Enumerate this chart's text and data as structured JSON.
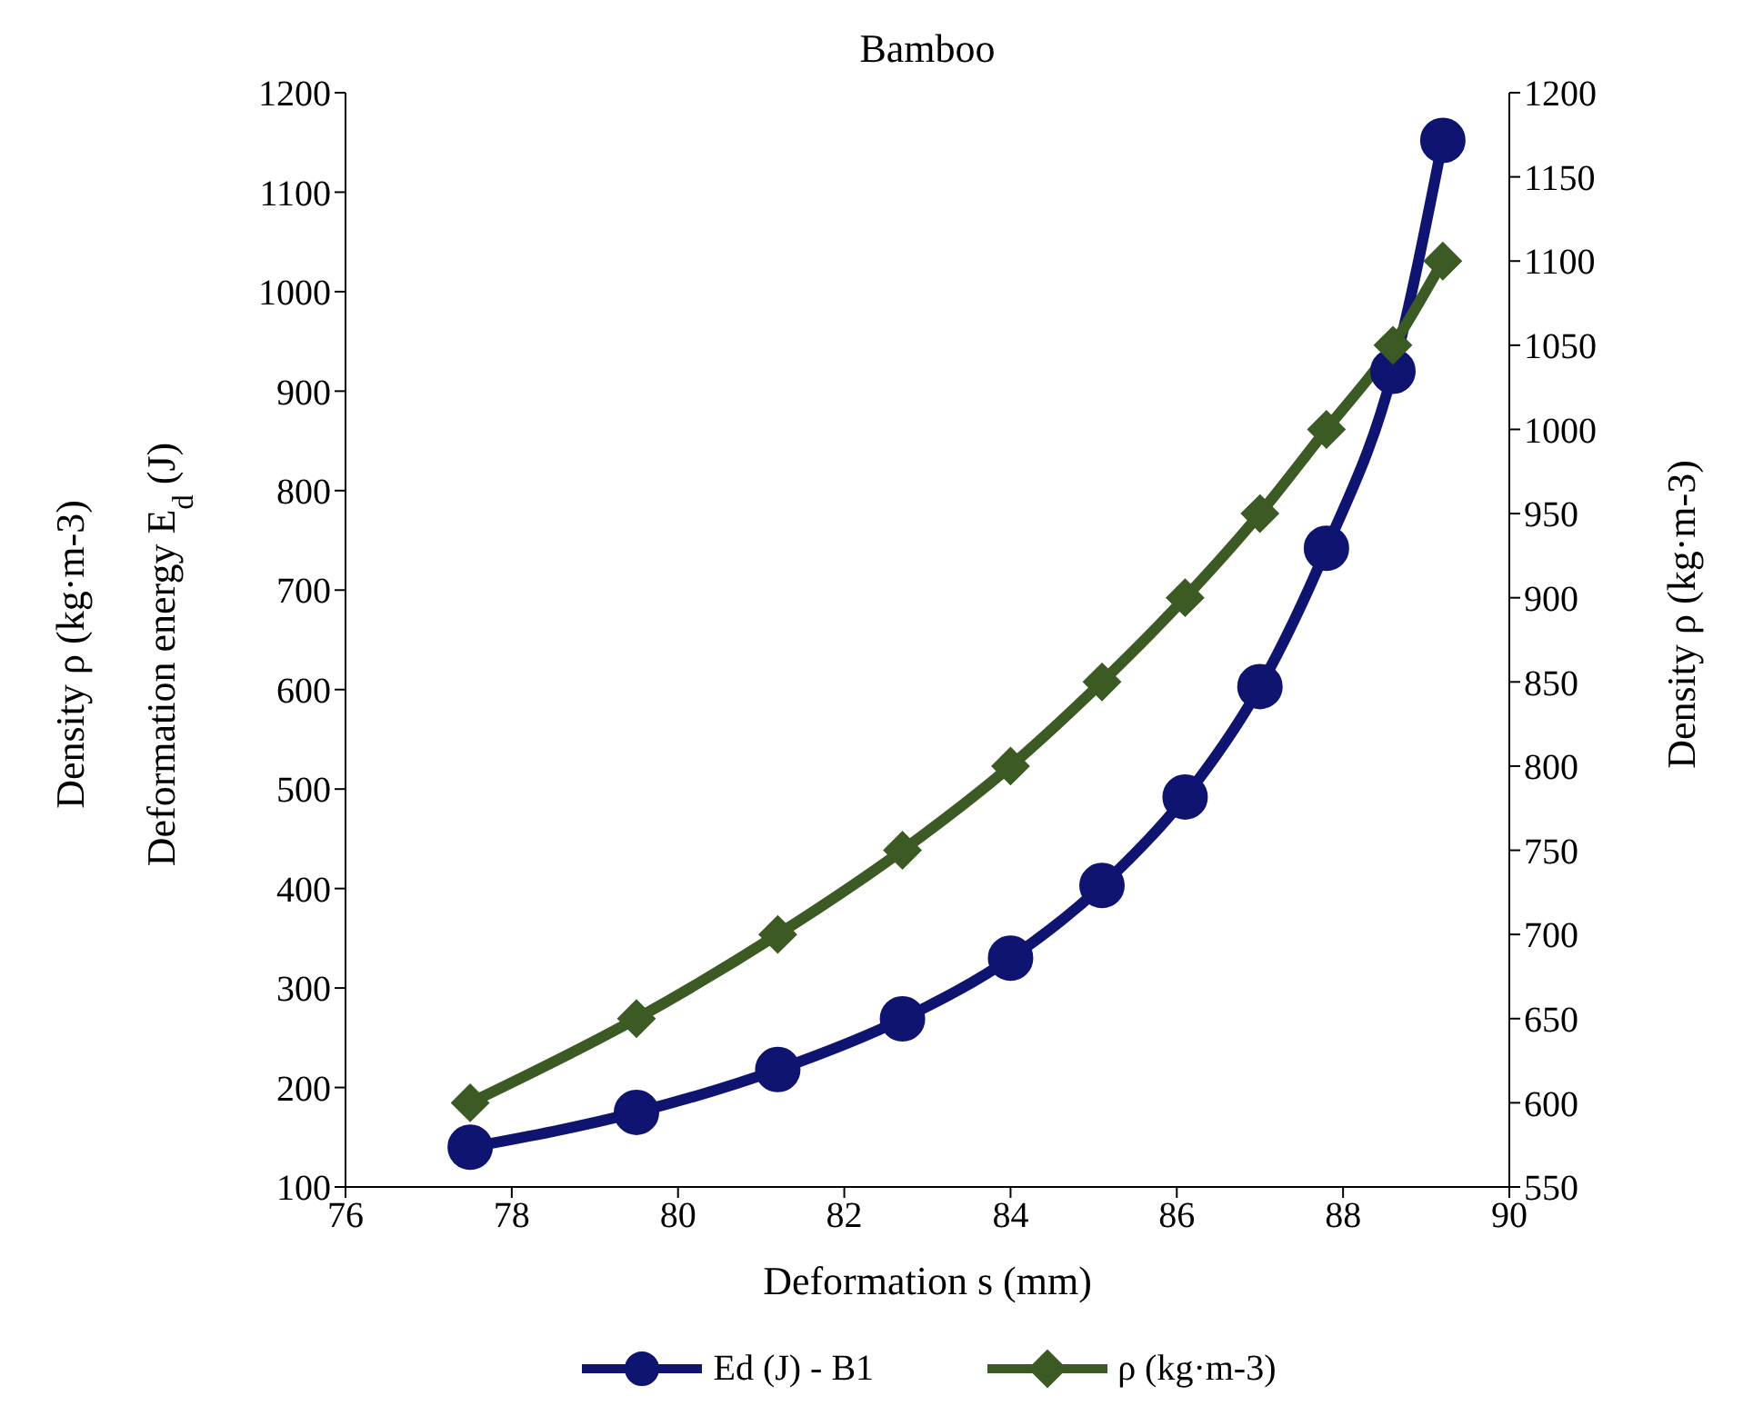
{
  "chart_data": {
    "type": "line",
    "title": "Bamboo",
    "xlabel": "Deformation s (mm)",
    "ylabel": "Deformation energy E$_{d}$ (J)",
    "y2label": "Density ρ (kg·m-3)",
    "annotations": [
      "Density ρ (kg·m-3)"
    ],
    "x": [
      77.5,
      79.5,
      81.2,
      82.7,
      84.0,
      85.1,
      86.1,
      87.0,
      87.8,
      88.6,
      89.2
    ],
    "series": [
      {
        "name": "Ed (J) - B1",
        "color": "#0f1470",
        "marker": "circle",
        "values": [
          140,
          175,
          218,
          269,
          330,
          403,
          492,
          603,
          742,
          920,
          1152
        ]
      },
      {
        "name": "ρ  (kg·m-3)",
        "color": "#3b5a24",
        "marker": "diamond",
        "axis": "y2",
        "values": [
          600,
          650,
          700,
          750,
          800,
          850,
          900,
          950,
          1000,
          1050,
          1100
        ]
      }
    ],
    "xlim": [
      76,
      90
    ],
    "xticks": [
      76,
      78,
      80,
      82,
      84,
      86,
      88,
      90
    ],
    "ylim": [
      100,
      1200
    ],
    "yticks": [
      100,
      200,
      300,
      400,
      500,
      600,
      700,
      800,
      900,
      1000,
      1100,
      1200
    ],
    "y2lim": [
      550,
      1200
    ],
    "y2ticks": [
      550,
      600,
      650,
      700,
      750,
      800,
      850,
      900,
      950,
      1000,
      1050,
      1100,
      1150,
      1200
    ],
    "grid": false,
    "legend": "bottom",
    "line_style": "solid"
  }
}
